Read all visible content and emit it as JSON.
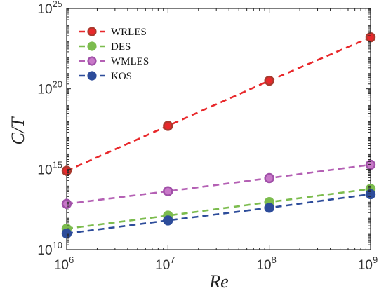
{
  "chart_data": {
    "type": "line",
    "xlabel": "Re",
    "ylabel": "C/T",
    "xscale": "log",
    "yscale": "log",
    "xlim": [
      1000000.0,
      1000000000.0
    ],
    "ylim": [
      10000000000.0,
      1e+25
    ],
    "x_ticks": [
      {
        "value": 1000000.0,
        "base": "10",
        "exp": "6"
      },
      {
        "value": 10000000.0,
        "base": "10",
        "exp": "7"
      },
      {
        "value": 100000000.0,
        "base": "10",
        "exp": "8"
      },
      {
        "value": 1000000000.0,
        "base": "10",
        "exp": "9"
      }
    ],
    "y_ticks": [
      {
        "value": 10000000000.0,
        "base": "10",
        "exp": "10"
      },
      {
        "value": 1000000000000000.0,
        "base": "10",
        "exp": "15"
      },
      {
        "value": 1e+20,
        "base": "10",
        "exp": "20"
      },
      {
        "value": 1e+25,
        "base": "10",
        "exp": "25"
      }
    ],
    "grid": false,
    "legend_position": "top-left",
    "x": [
      1000000.0,
      10000000.0,
      100000000.0,
      1000000000.0
    ],
    "series": [
      {
        "name": "WRLES",
        "color": "#e8282b",
        "marker_fill": "#e8282b",
        "marker_edge": "#a83a2e",
        "values": [
          800000000000000.0,
          5e+17,
          3.2e+20,
          1.6e+23
        ]
      },
      {
        "name": "DES",
        "color": "#7cbc4e",
        "marker_fill": "#7cbc4e",
        "marker_edge": "#7cbc4e",
        "values": [
          200000000000.0,
          1300000000000.0,
          9000000000000.0,
          60000000000000.0
        ]
      },
      {
        "name": "WMLES",
        "color": "#b460b4",
        "marker_fill": "#c878c8",
        "marker_edge": "#a050a8",
        "values": [
          7000000000000.0,
          43000000000000.0,
          280000000000000.0,
          1900000000000000.0
        ]
      },
      {
        "name": "KOS",
        "color": "#2d4c9a",
        "marker_fill": "#2d4c9a",
        "marker_edge": "#2d4c9a",
        "values": [
          100000000000.0,
          650000000000.0,
          4000000000000.0,
          28000000000000.0
        ]
      }
    ]
  }
}
